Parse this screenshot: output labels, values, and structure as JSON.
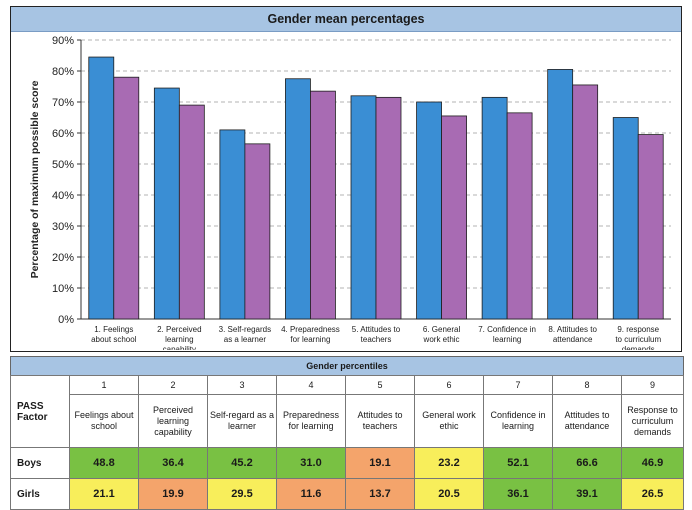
{
  "chart_data": {
    "type": "bar",
    "title": "Gender mean percentages",
    "ylabel": "Percentage of maximum possible score",
    "xlabel": "",
    "ylim": [
      0,
      90
    ],
    "yticks": [
      "0%",
      "10%",
      "20%",
      "30%",
      "40%",
      "50%",
      "60%",
      "70%",
      "80%",
      "90%"
    ],
    "grid": true,
    "categories": [
      [
        "1. Feelings",
        "about school"
      ],
      [
        "2. Perceived",
        "learning",
        "capability"
      ],
      [
        "3. Self-regards",
        "as a learner"
      ],
      [
        "4. Preparedness",
        "for learning"
      ],
      [
        "5. Attitudes to",
        "teachers"
      ],
      [
        "6. General",
        "work ethic"
      ],
      [
        "7. Confidence in",
        "learning"
      ],
      [
        "8. Attitudes to",
        "attendance"
      ],
      [
        "9. response",
        "to curriculum",
        "demands"
      ]
    ],
    "series": [
      {
        "color": "#3a8ed4",
        "values": [
          84.5,
          74.5,
          61,
          77.5,
          72,
          70,
          71.5,
          80.5,
          65
        ]
      },
      {
        "color": "#a86bb3",
        "values": [
          78,
          69,
          56.5,
          73.5,
          71.5,
          65.5,
          66.5,
          75.5,
          59.5
        ]
      }
    ]
  },
  "table": {
    "title": "Gender percentiles",
    "factor_label": "PASS Factor",
    "columns": [
      {
        "num": "1",
        "label": "Feelings about school"
      },
      {
        "num": "2",
        "label": "Perceived learning capability"
      },
      {
        "num": "3",
        "label": "Self-regard as a learner"
      },
      {
        "num": "4",
        "label": "Preparedness for learning"
      },
      {
        "num": "5",
        "label": "Attitudes to teachers"
      },
      {
        "num": "6",
        "label": "General work ethic"
      },
      {
        "num": "7",
        "label": "Confidence in learning"
      },
      {
        "num": "8",
        "label": "Attitudes to attendance"
      },
      {
        "num": "9",
        "label": "Response to curriculum demands"
      }
    ],
    "rows": [
      {
        "label": "Boys",
        "values": [
          "48.8",
          "36.4",
          "45.2",
          "31.0",
          "19.1",
          "23.2",
          "52.1",
          "66.6",
          "46.9"
        ],
        "colors": [
          "#79c143",
          "#79c143",
          "#79c143",
          "#79c143",
          "#f4a46b",
          "#f8ee5b",
          "#79c143",
          "#79c143",
          "#79c143"
        ]
      },
      {
        "label": "Girls",
        "values": [
          "21.1",
          "19.9",
          "29.5",
          "11.6",
          "13.7",
          "20.5",
          "36.1",
          "39.1",
          "26.5"
        ],
        "colors": [
          "#f8ee5b",
          "#f4a46b",
          "#f8ee5b",
          "#f4a46b",
          "#f4a46b",
          "#f8ee5b",
          "#79c143",
          "#79c143",
          "#f8ee5b"
        ]
      }
    ]
  }
}
